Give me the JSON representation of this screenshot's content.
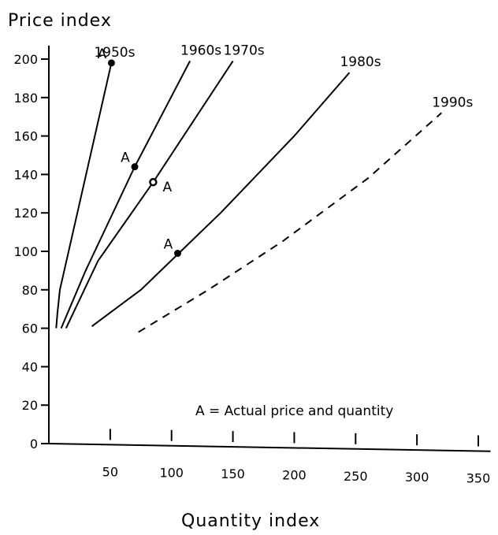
{
  "chart_data": {
    "type": "line",
    "title": "",
    "xlabel": "Quantity index",
    "ylabel": "Price index",
    "xlim": [
      0,
      360
    ],
    "ylim": [
      0,
      210
    ],
    "x_ticks": [
      50,
      100,
      150,
      200,
      250,
      300,
      350
    ],
    "y_ticks": [
      0,
      20,
      40,
      60,
      80,
      100,
      120,
      140,
      160,
      180,
      200
    ],
    "grid": false,
    "series": [
      {
        "name": "1950s",
        "style": "solid",
        "points": [
          [
            6,
            60
          ],
          [
            7,
            68
          ],
          [
            9,
            80
          ],
          [
            51,
            198
          ]
        ]
      },
      {
        "name": "1960s",
        "style": "solid",
        "points": [
          [
            10,
            60
          ],
          [
            30,
            90
          ],
          [
            70,
            144
          ],
          [
            115,
            199
          ]
        ]
      },
      {
        "name": "1970s",
        "style": "solid",
        "points": [
          [
            14,
            60
          ],
          [
            40,
            95
          ],
          [
            85,
            136
          ],
          [
            150,
            199
          ]
        ]
      },
      {
        "name": "1980s",
        "style": "solid",
        "points": [
          [
            35,
            61
          ],
          [
            75,
            80
          ],
          [
            140,
            120
          ],
          [
            200,
            160
          ],
          [
            245,
            193
          ]
        ]
      },
      {
        "name": "1990s",
        "style": "dashed",
        "points": [
          [
            73,
            58
          ],
          [
            130,
            80
          ],
          [
            190,
            105
          ],
          [
            260,
            138
          ],
          [
            320,
            172
          ]
        ]
      }
    ],
    "points": [
      {
        "label": "A",
        "series": "1950s",
        "x": 51,
        "y": 198,
        "marker": "filled"
      },
      {
        "label": "A",
        "series": "1960s",
        "x": 70,
        "y": 144,
        "marker": "filled"
      },
      {
        "label": "A",
        "series": "1970s",
        "x": 85,
        "y": 136,
        "marker": "open"
      },
      {
        "label": "A",
        "series": "1980s",
        "x": 105,
        "y": 99,
        "marker": "filled"
      }
    ],
    "annotation": "A = Actual price and quantity"
  }
}
